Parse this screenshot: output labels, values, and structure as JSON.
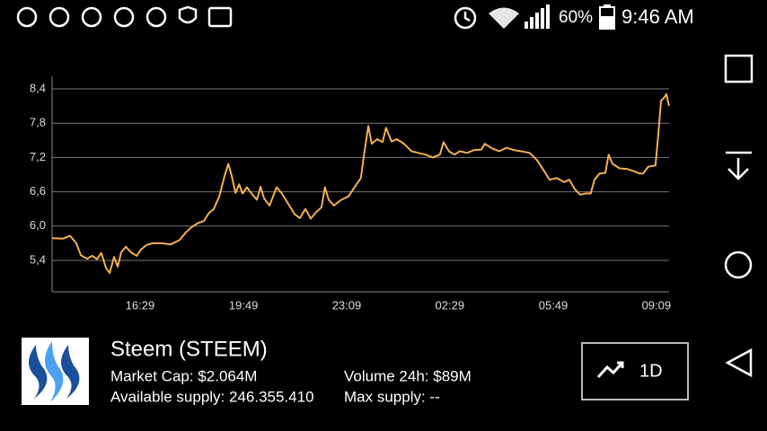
{
  "status_bar": {
    "battery": "60%",
    "time": "9:46 AM"
  },
  "chart_data": {
    "type": "line",
    "color": "#f2b052",
    "grid": true,
    "xlim": [
      13.64,
      33.56
    ],
    "xticks": [
      {
        "value": 16.48,
        "label": "16:29"
      },
      {
        "value": 19.82,
        "label": "19:49"
      },
      {
        "value": 23.15,
        "label": "23:09"
      },
      {
        "value": 26.48,
        "label": "02:29"
      },
      {
        "value": 29.82,
        "label": "05:49"
      },
      {
        "value": 33.15,
        "label": "09:09"
      }
    ],
    "ylim": [
      4.85,
      8.62
    ],
    "yticks": [
      {
        "value": 5.4,
        "label": "5,4"
      },
      {
        "value": 6.0,
        "label": "6,0"
      },
      {
        "value": 6.6,
        "label": "6,6"
      },
      {
        "value": 7.2,
        "label": "7,2"
      },
      {
        "value": 7.8,
        "label": "7,8"
      },
      {
        "value": 8.4,
        "label": "8,4"
      }
    ],
    "x": [
      13.64,
      13.99,
      14.22,
      14.42,
      14.57,
      14.77,
      14.94,
      15.09,
      15.23,
      15.38,
      15.5,
      15.64,
      15.76,
      15.87,
      16.02,
      16.19,
      16.37,
      16.51,
      16.69,
      16.89,
      17.18,
      17.47,
      17.76,
      17.96,
      18.14,
      18.34,
      18.54,
      18.69,
      18.86,
      19.04,
      19.21,
      19.33,
      19.44,
      19.56,
      19.68,
      19.79,
      19.93,
      20.08,
      20.25,
      20.37,
      20.48,
      20.66,
      20.89,
      21.06,
      21.24,
      21.47,
      21.64,
      21.82,
      21.99,
      22.16,
      22.34,
      22.45,
      22.57,
      22.74,
      22.98,
      23.21,
      23.44,
      23.61,
      23.7,
      23.85,
      23.96,
      24.13,
      24.31,
      24.42,
      24.6,
      24.77,
      25.0,
      25.24,
      25.47,
      25.7,
      25.93,
      26.16,
      26.28,
      26.45,
      26.63,
      26.8,
      27.03,
      27.27,
      27.5,
      27.61,
      27.84,
      28.08,
      28.31,
      28.54,
      28.77,
      29.06,
      29.3,
      29.53,
      29.7,
      29.93,
      30.17,
      30.34,
      30.51,
      30.69,
      30.86,
      31.03,
      31.15,
      31.32,
      31.5,
      31.61,
      31.73,
      31.96,
      32.19,
      32.43,
      32.6,
      32.72,
      32.89,
      33.12,
      33.21,
      33.3,
      33.42,
      33.47,
      33.56
    ],
    "values": [
      5.79,
      5.78,
      5.83,
      5.7,
      5.49,
      5.43,
      5.48,
      5.42,
      5.53,
      5.27,
      5.18,
      5.46,
      5.29,
      5.54,
      5.64,
      5.54,
      5.48,
      5.59,
      5.67,
      5.7,
      5.7,
      5.68,
      5.76,
      5.89,
      5.98,
      6.05,
      6.09,
      6.22,
      6.3,
      6.52,
      6.88,
      7.09,
      6.88,
      6.58,
      6.73,
      6.57,
      6.68,
      6.57,
      6.46,
      6.69,
      6.49,
      6.36,
      6.68,
      6.57,
      6.41,
      6.21,
      6.14,
      6.3,
      6.13,
      6.24,
      6.33,
      6.68,
      6.46,
      6.36,
      6.46,
      6.52,
      6.71,
      6.84,
      7.2,
      7.75,
      7.44,
      7.52,
      7.47,
      7.72,
      7.48,
      7.52,
      7.44,
      7.31,
      7.28,
      7.25,
      7.2,
      7.25,
      7.47,
      7.31,
      7.25,
      7.31,
      7.28,
      7.33,
      7.34,
      7.44,
      7.36,
      7.31,
      7.37,
      7.33,
      7.31,
      7.28,
      7.15,
      6.96,
      6.81,
      6.84,
      6.77,
      6.81,
      6.65,
      6.55,
      6.57,
      6.57,
      6.81,
      6.92,
      6.93,
      7.25,
      7.09,
      7.01,
      7.0,
      6.96,
      6.92,
      6.92,
      7.04,
      7.06,
      7.59,
      8.19,
      8.26,
      8.31,
      8.1
    ]
  },
  "coin": {
    "name": "Steem (STEEM)",
    "market_cap": "Market Cap: $2.064M",
    "volume": "Volume 24h: $89M",
    "available_supply": "Available supply: 246.355.410",
    "max_supply": "Max supply: --"
  },
  "button": {
    "label": "1D"
  }
}
